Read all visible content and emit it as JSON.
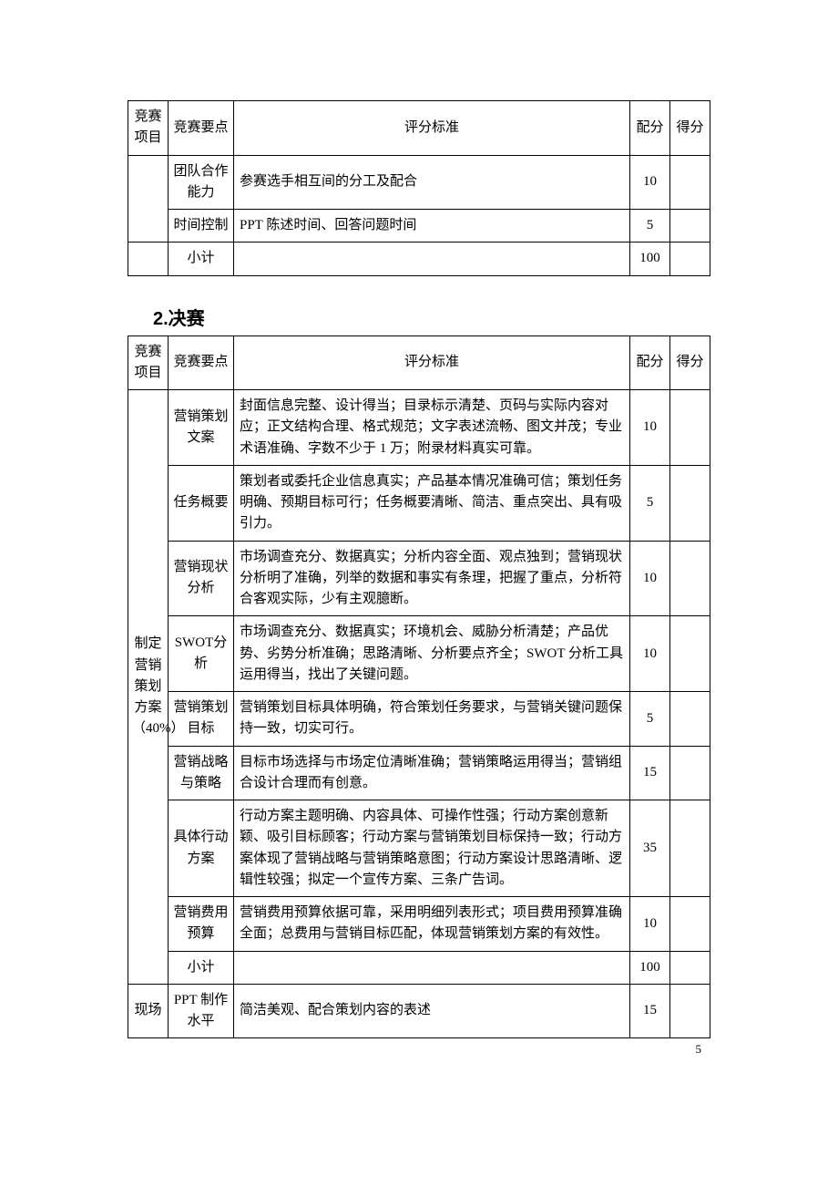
{
  "pageNumber": "5",
  "table1": {
    "headers": {
      "proj": "竞赛项目",
      "point": "竞赛要点",
      "std": "评分标准",
      "peifen": "配分",
      "defen": "得分"
    },
    "rows": [
      {
        "point": "团队合作能力",
        "std": "参赛选手相互间的分工及配合",
        "peifen": "10",
        "defen": ""
      },
      {
        "point": "时间控制",
        "std": "PPT 陈述时间、回答问题时间",
        "peifen": "5",
        "defen": ""
      },
      {
        "point": "小计",
        "std": "",
        "peifen": "100",
        "defen": ""
      }
    ]
  },
  "section2Title": "2.决赛",
  "table2": {
    "headers": {
      "proj": "竞赛项目",
      "point": "竞赛要点",
      "std": "评分标准",
      "peifen": "配分",
      "defen": "得分"
    },
    "projLabel": "制定营销策划方案（40%）",
    "rows": [
      {
        "point": "营销策划文案",
        "std": "封面信息完整、设计得当；目录标示清楚、页码与实际内容对应；正文结构合理、格式规范；文字表述流畅、图文并茂；专业术语准确、字数不少于 1 万；附录材料真实可靠。",
        "peifen": "10",
        "defen": ""
      },
      {
        "point": "任务概要",
        "std": "策划者或委托企业信息真实；产品基本情况准确可信；策划任务明确、预期目标可行；任务概要清晰、简洁、重点突出、具有吸引力。",
        "peifen": "5",
        "defen": ""
      },
      {
        "point": "营销现状分析",
        "std": "市场调查充分、数据真实；分析内容全面、观点独到；营销现状分析明了准确，列举的数据和事实有条理，把握了重点，分析符合客观实际，少有主观臆断。",
        "peifen": "10",
        "defen": ""
      },
      {
        "point": "SWOT分析",
        "std": "市场调查充分、数据真实；环境机会、威胁分析清楚；产品优势、劣势分析准确；思路清晰、分析要点齐全；SWOT 分析工具运用得当，找出了关键问题。",
        "peifen": "10",
        "defen": ""
      },
      {
        "point": "营销策划目标",
        "std": "营销策划目标具体明确，符合策划任务要求，与营销关键问题保持一致，切实可行。",
        "peifen": "5",
        "defen": ""
      },
      {
        "point": "营销战略与策略",
        "std": "目标市场选择与市场定位清晰准确；营销策略运用得当；营销组合设计合理而有创意。",
        "peifen": "15",
        "defen": ""
      },
      {
        "point": "具体行动方案",
        "std": "行动方案主题明确、内容具体、可操作性强；行动方案创意新颖、吸引目标顾客；行动方案与营销策划目标保持一致；行动方案体现了营销战略与营销策略意图；行动方案设计思路清晰、逻辑性较强；拟定一个宣传方案、三条广告词。",
        "peifen": "35",
        "defen": ""
      },
      {
        "point": "营销费用预算",
        "std": "营销费用预算依据可靠，采用明细列表形式；项目费用预算准确全面；总费用与营销目标匹配，体现营销策划方案的有效性。",
        "peifen": "10",
        "defen": ""
      },
      {
        "point": "小计",
        "std": "",
        "peifen": "100",
        "defen": ""
      }
    ]
  },
  "table3": {
    "projLabel": "现场",
    "rows": [
      {
        "point": "PPT 制作水平",
        "std": "简洁美观、配合策划内容的表述",
        "peifen": "15",
        "defen": ""
      }
    ]
  }
}
